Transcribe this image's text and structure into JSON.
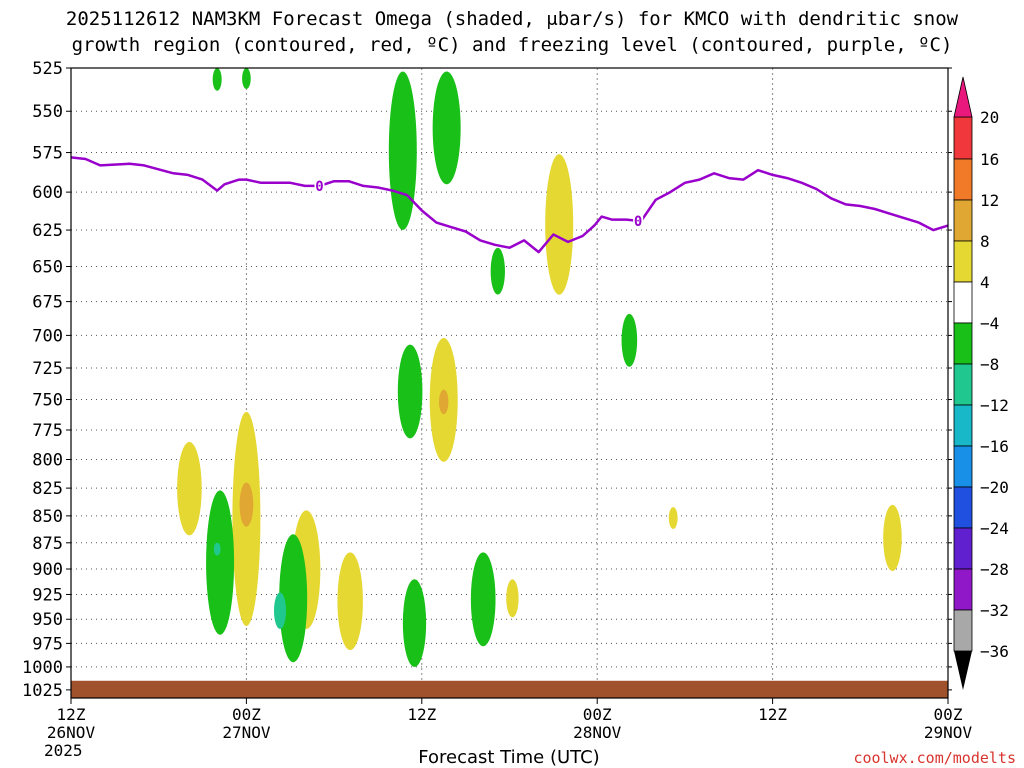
{
  "title_line1": "2025112612 NAM3KM Forecast Omega (shaded, μbar/s) for KMCO with dendritic snow",
  "title_line2": "growth region (contoured, red, ºC) and freezing level (contoured, purple, ºC)",
  "credit": "coolwx.com/modelts",
  "chart_data": {
    "type": "heatmap",
    "xlabel": "Forecast Time (UTC)",
    "x_range_hours": [
      0,
      60
    ],
    "x_ticks": [
      {
        "h": 0,
        "lines": [
          "12Z",
          "26NOV",
          "2025"
        ]
      },
      {
        "h": 12,
        "lines": [
          "00Z",
          "27NOV"
        ]
      },
      {
        "h": 24,
        "lines": [
          "12Z"
        ]
      },
      {
        "h": 36,
        "lines": [
          "00Z",
          "28NOV"
        ]
      },
      {
        "h": 48,
        "lines": [
          "12Z"
        ]
      },
      {
        "h": 60,
        "lines": [
          "00Z",
          "29NOV"
        ]
      }
    ],
    "y_range_hpa": [
      525,
      1034
    ],
    "y_ticks": [
      525,
      550,
      575,
      600,
      625,
      650,
      675,
      700,
      725,
      750,
      775,
      800,
      825,
      850,
      875,
      900,
      925,
      950,
      975,
      1000,
      1025
    ],
    "grid": true,
    "colorbar": {
      "labels": [
        "20",
        "16",
        "12",
        "8",
        "4",
        "−4",
        "−8",
        "−12",
        "−16",
        "−20",
        "−24",
        "−28",
        "−32",
        "−36"
      ],
      "colors": [
        "#f0383c",
        "#f07a28",
        "#e0a832",
        "#e6d832",
        "#ffffff",
        "#18c018",
        "#20c890",
        "#18b8c8",
        "#1890e8",
        "#2050e0",
        "#6020d0",
        "#9018c8",
        "#a8a8a8"
      ],
      "top_arrow_color": "#e8187c",
      "bottom_arrow_color": "#000000"
    },
    "freezing_level": {
      "label": "0",
      "color": "#9900cc",
      "points": [
        [
          0,
          578
        ],
        [
          1,
          579
        ],
        [
          2,
          583
        ],
        [
          4,
          582
        ],
        [
          5,
          583
        ],
        [
          7,
          588
        ],
        [
          8,
          589
        ],
        [
          9,
          592
        ],
        [
          10,
          599
        ],
        [
          10.5,
          595
        ],
        [
          11.5,
          592
        ],
        [
          12,
          592
        ],
        [
          13,
          594
        ],
        [
          15,
          594
        ],
        [
          16,
          596
        ],
        [
          17,
          596
        ],
        [
          18,
          593
        ],
        [
          19,
          593
        ],
        [
          20,
          596
        ],
        [
          21,
          597
        ],
        [
          22,
          599
        ],
        [
          23,
          602
        ],
        [
          24,
          612
        ],
        [
          25,
          620
        ],
        [
          26,
          623
        ],
        [
          27,
          626
        ],
        [
          28,
          632
        ],
        [
          29,
          635
        ],
        [
          30,
          637
        ],
        [
          31,
          632
        ],
        [
          32,
          640
        ],
        [
          33,
          628
        ],
        [
          34,
          633
        ],
        [
          35,
          629
        ],
        [
          35.8,
          622
        ],
        [
          36.3,
          616
        ],
        [
          37,
          618
        ],
        [
          38,
          618
        ],
        [
          39,
          619
        ],
        [
          40,
          605
        ],
        [
          41,
          600
        ],
        [
          42,
          594
        ],
        [
          43,
          592
        ],
        [
          44,
          588
        ],
        [
          45,
          591
        ],
        [
          46,
          592
        ],
        [
          47,
          586
        ],
        [
          48,
          589
        ],
        [
          49,
          591
        ],
        [
          50,
          594
        ],
        [
          51,
          598
        ],
        [
          52,
          604
        ],
        [
          53,
          608
        ],
        [
          54,
          609
        ],
        [
          55,
          611
        ],
        [
          56,
          614
        ],
        [
          57,
          617
        ],
        [
          58,
          620
        ],
        [
          59,
          625
        ],
        [
          60,
          622
        ]
      ],
      "value_labels": [
        {
          "h": 17,
          "p": 596
        },
        {
          "h": 38.8,
          "p": 619
        }
      ]
    },
    "omega_areas": [
      {
        "value": 6,
        "color": "#e6d832",
        "h": 8.1,
        "p1": 785,
        "p2": 868
      },
      {
        "value": 6,
        "color": "#e6d832",
        "h": 12,
        "p1": 760,
        "p2": 957
      },
      {
        "value": 6,
        "color": "#e6d832",
        "h": 16.1,
        "p1": 845,
        "p2": 960
      },
      {
        "value": 6,
        "color": "#e6d832",
        "h": 19.1,
        "p1": 884,
        "p2": 982
      },
      {
        "value": 6,
        "color": "#e6d832",
        "h": 25.5,
        "p1": 702,
        "p2": 802
      },
      {
        "value": 6,
        "color": "#e6d832",
        "h": 33.4,
        "p1": 576,
        "p2": 670
      },
      {
        "value": 6,
        "color": "#e6d832",
        "h": 30.2,
        "p1": 910,
        "p2": 948
      },
      {
        "value": 6,
        "color": "#e6d832",
        "h": 41.2,
        "p1": 842,
        "p2": 862
      },
      {
        "value": 6,
        "color": "#e6d832",
        "h": 56.2,
        "p1": 840,
        "p2": 902
      },
      {
        "value": 10,
        "color": "#e0a832",
        "h": 12,
        "p1": 820,
        "p2": 860
      },
      {
        "value": 10,
        "color": "#e0a832",
        "h": 25.5,
        "p1": 742,
        "p2": 762
      },
      {
        "value": -6,
        "color": "#18c018",
        "h": 10.2,
        "p1": 827,
        "p2": 966
      },
      {
        "value": -6,
        "color": "#18c018",
        "h": 15.2,
        "p1": 867,
        "p2": 995
      },
      {
        "value": -6,
        "color": "#18c018",
        "h": 23.2,
        "p1": 707,
        "p2": 782
      },
      {
        "value": -6,
        "color": "#18c018",
        "h": 22.7,
        "p1": 527,
        "p2": 625
      },
      {
        "value": -6,
        "color": "#18c018",
        "h": 25.7,
        "p1": 527,
        "p2": 595
      },
      {
        "value": -6,
        "color": "#18c018",
        "h": 29.2,
        "p1": 637,
        "p2": 670
      },
      {
        "value": -6,
        "color": "#18c018",
        "h": 38.2,
        "p1": 684,
        "p2": 724
      },
      {
        "value": -6,
        "color": "#18c018",
        "h": 10,
        "p1": 525,
        "p2": 538
      },
      {
        "value": -6,
        "color": "#18c018",
        "h": 12,
        "p1": 525,
        "p2": 537
      },
      {
        "value": -6,
        "color": "#18c018",
        "h": 23.5,
        "p1": 910,
        "p2": 1000
      },
      {
        "value": -6,
        "color": "#18c018",
        "h": 28.2,
        "p1": 884,
        "p2": 978
      },
      {
        "value": -10,
        "color": "#20c890",
        "h": 14.3,
        "p1": 923,
        "p2": 960
      },
      {
        "value": -10,
        "color": "#20c890",
        "h": 10,
        "p1": 875,
        "p2": 887
      }
    ],
    "terrain": {
      "color": "#a0522d",
      "p_top": 1015
    }
  }
}
